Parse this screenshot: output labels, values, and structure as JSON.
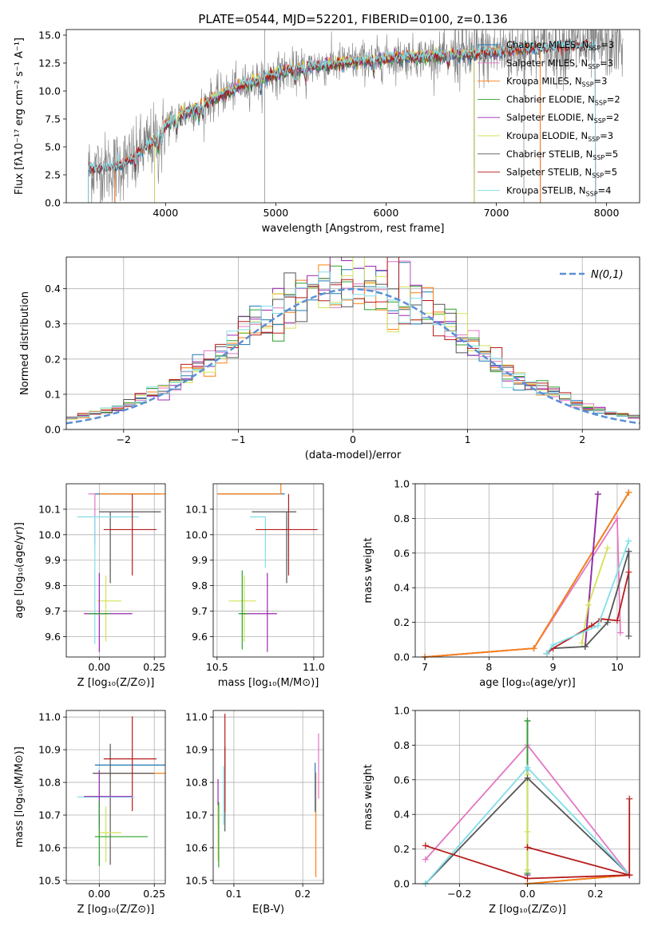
{
  "colors": {
    "Chabrier MILES": "#1f77b4",
    "Salpeter MILES": "#e377c2",
    "Kroupa MILES": "#ff7f0e",
    "Chabrier ELODIE": "#2ca02c",
    "Salpeter ELODIE": "#9c27b0",
    "Kroupa ELODIE": "#d4e157",
    "Chabrier STELIB": "#555555",
    "Salpeter STELIB": "#b71c1c",
    "Kroupa STELIB": "#80deea",
    "data": "#808080",
    "gaussian": "#5b8fd6"
  },
  "chart_data": [
    {
      "id": "spectrum",
      "type": "line",
      "title": "PLATE=0544, MJD=52201, FIBERID=0100, z=0.136",
      "xlabel": "wavelength [Angstrom, rest frame]",
      "ylabel": "Flux [fλ10⁻¹⁷ erg cm⁻² s⁻¹ A⁻¹]",
      "xlim": [
        3100,
        8300
      ],
      "ylim": [
        0,
        15.5
      ],
      "xticks": [
        4000,
        5000,
        6000,
        7000,
        8000
      ],
      "yticks": [
        0.0,
        2.5,
        5.0,
        7.5,
        10.0,
        12.5,
        15.0
      ],
      "legend_position": "upper-right",
      "legend": [
        {
          "model": "Chabrier MILES",
          "label": "Chabrier MILES, N",
          "sub": "SSP",
          "tail": "=3"
        },
        {
          "model": "Salpeter MILES",
          "label": "Salpeter MILES, N",
          "sub": "SSP",
          "tail": "=3"
        },
        {
          "model": "Kroupa MILES",
          "label": "Kroupa MILES, N",
          "sub": "SSP",
          "tail": "=3"
        },
        {
          "model": "Chabrier ELODIE",
          "label": "Chabrier ELODIE, N",
          "sub": "SSP",
          "tail": "=2"
        },
        {
          "model": "Salpeter ELODIE",
          "label": "Salpeter ELODIE, N",
          "sub": "SSP",
          "tail": "=2"
        },
        {
          "model": "Kroupa ELODIE",
          "label": "Kroupa ELODIE, N",
          "sub": "SSP",
          "tail": "=3"
        },
        {
          "model": "Chabrier STELIB",
          "label": "Chabrier STELIB, N",
          "sub": "SSP",
          "tail": "=5"
        },
        {
          "model": "Salpeter STELIB",
          "label": "Salpeter STELIB, N",
          "sub": "SSP",
          "tail": "=5"
        },
        {
          "model": "Kroupa STELIB",
          "label": "Kroupa STELIB, N",
          "sub": "SSP",
          "tail": "=4"
        }
      ],
      "continuum": {
        "x": [
          3300,
          3450,
          3600,
          3700,
          3800,
          3900,
          4000,
          4100,
          4300,
          4500,
          4700,
          4900,
          5100,
          5300,
          5500,
          5700,
          5900,
          6100,
          6300,
          6500,
          6700,
          6900,
          7100,
          7300,
          7500,
          7700,
          7900,
          8100
        ],
        "y": [
          3.0,
          3.1,
          3.4,
          4.0,
          4.8,
          5.6,
          6.9,
          7.6,
          8.6,
          9.6,
          10.5,
          11.2,
          11.8,
          12.2,
          12.4,
          12.6,
          12.8,
          13.0,
          13.1,
          13.2,
          13.3,
          13.4,
          13.6,
          13.8,
          13.9,
          14.0,
          14.1,
          14.2
        ]
      },
      "model_ranges": {
        "Chabrier MILES": [
          3540,
          7400
        ],
        "Salpeter MILES": [
          3540,
          7400
        ],
        "Kroupa MILES": [
          3540,
          7400
        ],
        "Chabrier ELODIE": [
          3900,
          6800
        ],
        "Salpeter ELODIE": [
          3900,
          6800
        ],
        "Kroupa ELODIE": [
          3900,
          6800
        ],
        "Chabrier STELIB": [
          3300,
          7900
        ],
        "Salpeter STELIB": [
          3300,
          7900
        ],
        "Kroupa STELIB": [
          3300,
          7900
        ]
      },
      "data_range": [
        3300,
        8150
      ]
    },
    {
      "id": "residuals",
      "type": "histogram",
      "xlabel": "(data-model)/error",
      "ylabel": "Normed distribution",
      "xlim": [
        -2.5,
        2.5
      ],
      "ylim": [
        0,
        0.49
      ],
      "xticks": [
        -2,
        -1,
        0,
        1,
        2
      ],
      "yticks": [
        0.0,
        0.1,
        0.2,
        0.3,
        0.4
      ],
      "bin_width": 0.1,
      "legend_label": "N(0,1)",
      "legend_position": "upper-right",
      "grid": true
    },
    {
      "id": "age-vs-Z",
      "type": "errorbar",
      "xlabel": "Z [log₁₀(Z/Z⊙)]",
      "ylabel": "age  [log₁₀(age/yr)]",
      "xlim": [
        -0.15,
        0.3
      ],
      "ylim": [
        9.52,
        10.2
      ],
      "xticks": [
        0.0,
        0.25
      ],
      "yticks": [
        9.6,
        9.7,
        9.8,
        9.9,
        10.0,
        10.1
      ],
      "points": [
        {
          "model": "Chabrier MILES",
          "x": 0.1,
          "y": 10.16,
          "xerr": [
            0.12,
            0.18
          ],
          "yerr": [
            0.0,
            0.0
          ]
        },
        {
          "model": "Kroupa MILES",
          "x": 0.1,
          "y": 10.16,
          "xerr": [
            0.1,
            0.2
          ],
          "yerr": [
            0.0,
            0.0
          ]
        },
        {
          "model": "Salpeter MILES",
          "x": -0.02,
          "y": 10.16,
          "xerr": [
            0.03,
            0.0
          ],
          "yerr": [
            0.2,
            0.0
          ]
        },
        {
          "model": "Chabrier STELIB",
          "x": 0.05,
          "y": 10.09,
          "xerr": [
            0.05,
            0.23
          ],
          "yerr": [
            0.28,
            0.0
          ]
        },
        {
          "model": "Kroupa STELIB",
          "x": -0.02,
          "y": 10.07,
          "xerr": [
            0.08,
            0.2
          ],
          "yerr": [
            0.5,
            0.0
          ]
        },
        {
          "model": "Salpeter STELIB",
          "x": 0.15,
          "y": 10.02,
          "xerr": [
            0.13,
            0.11
          ],
          "yerr": [
            0.18,
            0.14
          ]
        },
        {
          "model": "Kroupa ELODIE",
          "x": 0.03,
          "y": 9.74,
          "xerr": [
            0.04,
            0.07
          ],
          "yerr": [
            0.16,
            0.1
          ]
        },
        {
          "model": "Salpeter ELODIE",
          "x": 0.0,
          "y": 9.69,
          "xerr": [
            0.07,
            0.15
          ],
          "yerr": [
            0.15,
            0.16
          ]
        },
        {
          "model": "Chabrier ELODIE",
          "x": 0.0,
          "y": 9.69,
          "xerr": [
            0.05,
            0.05
          ],
          "yerr": [
            0.0,
            0.0
          ]
        }
      ]
    },
    {
      "id": "age-vs-mass",
      "type": "errorbar",
      "xlabel": "mass [log₁₀(M/M⊙)]",
      "ylabel": "",
      "xlim": [
        10.48,
        11.05
      ],
      "ylim": [
        9.52,
        10.2
      ],
      "xticks": [
        10.5,
        11.0
      ],
      "yticks": [
        9.6,
        9.7,
        9.8,
        9.9,
        10.0,
        10.1
      ],
      "points": [
        {
          "model": "Chabrier MILES",
          "x": 10.85,
          "y": 10.16,
          "xerr": [
            0.35,
            0.0
          ],
          "yerr": [
            0.0,
            0.0
          ]
        },
        {
          "model": "Kroupa MILES",
          "x": 10.83,
          "y": 10.16,
          "xerr": [
            0.33,
            0.0
          ],
          "yerr": [
            0.0,
            0.53
          ]
        },
        {
          "model": "Salpeter MILES",
          "x": 10.86,
          "y": 10.16,
          "xerr": [
            0.0,
            0.0
          ],
          "yerr": [
            0.0,
            0.0
          ]
        },
        {
          "model": "Chabrier STELIB",
          "x": 10.86,
          "y": 10.09,
          "xerr": [
            0.18,
            0.05
          ],
          "yerr": [
            0.28,
            0.0
          ]
        },
        {
          "model": "Kroupa STELIB",
          "x": 10.75,
          "y": 10.07,
          "xerr": [
            0.08,
            0.0
          ],
          "yerr": [
            0.2,
            0.0
          ]
        },
        {
          "model": "Salpeter STELIB",
          "x": 10.87,
          "y": 10.02,
          "xerr": [
            0.17,
            0.15
          ],
          "yerr": [
            0.18,
            0.14
          ]
        },
        {
          "model": "Kroupa ELODIE",
          "x": 10.64,
          "y": 9.74,
          "xerr": [
            0.08,
            0.06
          ],
          "yerr": [
            0.16,
            0.1
          ]
        },
        {
          "model": "Salpeter ELODIE",
          "x": 10.76,
          "y": 9.69,
          "xerr": [
            0.14,
            0.05
          ],
          "yerr": [
            0.15,
            0.16
          ]
        },
        {
          "model": "Chabrier ELODIE",
          "x": 10.63,
          "y": 9.69,
          "xerr": [
            0.02,
            0.03
          ],
          "yerr": [
            0.14,
            0.17
          ]
        }
      ]
    },
    {
      "id": "weight-vs-age",
      "type": "line",
      "xlabel": "age  [log₁₀(age/yr)]",
      "ylabel": "mass weight",
      "xlim": [
        6.85,
        10.35
      ],
      "ylim": [
        0,
        1.0
      ],
      "xticks": [
        7,
        8,
        9,
        10
      ],
      "yticks": [
        0.0,
        0.2,
        0.4,
        0.6,
        0.8,
        1.0
      ],
      "grid": true,
      "series": [
        {
          "model": "Chabrier MILES",
          "x": [
            7.0,
            8.7,
            10.18
          ],
          "y": [
            0.0,
            0.05,
            0.95
          ]
        },
        {
          "model": "Salpeter MILES",
          "x": [
            7.0,
            8.7,
            10.0,
            10.05
          ],
          "y": [
            0.0,
            0.05,
            0.8,
            0.14
          ]
        },
        {
          "model": "Kroupa MILES",
          "x": [
            7.0,
            8.7,
            10.18
          ],
          "y": [
            0.0,
            0.05,
            0.95
          ]
        },
        {
          "model": "Chabrier ELODIE",
          "x": [
            9.5,
            9.7
          ],
          "y": [
            0.06,
            0.94
          ]
        },
        {
          "model": "Salpeter ELODIE",
          "x": [
            9.5,
            9.7
          ],
          "y": [
            0.06,
            0.94
          ]
        },
        {
          "model": "Kroupa ELODIE",
          "x": [
            9.45,
            9.55,
            9.85
          ],
          "y": [
            0.08,
            0.3,
            0.63
          ]
        },
        {
          "model": "Chabrier STELIB",
          "x": [
            8.9,
            9.0,
            9.5,
            9.85,
            10.18,
            10.18
          ],
          "y": [
            0.02,
            0.05,
            0.06,
            0.2,
            0.61,
            0.12
          ]
        },
        {
          "model": "Salpeter STELIB",
          "x": [
            8.9,
            9.0,
            9.6,
            9.75,
            10.0,
            10.18
          ],
          "y": [
            0.02,
            0.05,
            0.18,
            0.22,
            0.21,
            0.49
          ]
        },
        {
          "model": "Kroupa STELIB",
          "x": [
            8.9,
            9.0,
            9.7,
            10.18
          ],
          "y": [
            0.02,
            0.07,
            0.18,
            0.67
          ]
        }
      ]
    },
    {
      "id": "mass-vs-Z",
      "type": "errorbar",
      "xlabel": "Z [log₁₀(Z/Z⊙)]",
      "ylabel": "mass [log₁₀(M/M⊙)]",
      "xlim": [
        -0.15,
        0.3
      ],
      "ylim": [
        10.49,
        11.02
      ],
      "xticks": [
        0.0,
        0.25
      ],
      "yticks": [
        10.5,
        10.6,
        10.7,
        10.8,
        10.9,
        11.0
      ],
      "points": [
        {
          "model": "Chabrier MILES",
          "x": 0.1,
          "y": 10.853,
          "xerr": [
            0.12,
            0.2
          ],
          "yerr": [
            0.0,
            0.0
          ]
        },
        {
          "model": "Kroupa MILES",
          "x": 0.1,
          "y": 10.828,
          "xerr": [
            0.12,
            0.2
          ],
          "yerr": [
            0.0,
            0.0
          ]
        },
        {
          "model": "Salpeter MILES",
          "x": 0.0,
          "y": 10.855,
          "xerr": [
            0.0,
            0.0
          ],
          "yerr": [
            0.0,
            0.0
          ]
        },
        {
          "model": "Chabrier STELIB",
          "x": 0.05,
          "y": 10.828,
          "xerr": [
            0.08,
            0.2
          ],
          "yerr": [
            0.28,
            0.09
          ]
        },
        {
          "model": "Salpeter STELIB",
          "x": 0.15,
          "y": 10.872,
          "xerr": [
            0.13,
            0.11
          ],
          "yerr": [
            0.16,
            0.13
          ]
        },
        {
          "model": "Kroupa STELIB",
          "x": 0.0,
          "y": 10.755,
          "xerr": [
            0.1,
            0.16
          ],
          "yerr": [
            0.09,
            0.09
          ]
        },
        {
          "model": "Salpeter ELODIE",
          "x": 0.0,
          "y": 10.757,
          "xerr": [
            0.07,
            0.15
          ],
          "yerr": [
            0.1,
            0.08
          ]
        },
        {
          "model": "Kroupa ELODIE",
          "x": 0.03,
          "y": 10.646,
          "xerr": [
            0.03,
            0.07
          ],
          "yerr": [
            0.09,
            0.08
          ]
        },
        {
          "model": "Chabrier ELODIE",
          "x": 0.0,
          "y": 10.634,
          "xerr": [
            0.02,
            0.22
          ],
          "yerr": [
            0.09,
            0.11
          ]
        }
      ]
    },
    {
      "id": "mass-vs-EBV",
      "type": "errorbar",
      "xlabel": "E(B-V)",
      "ylabel": "",
      "xlim": [
        0.07,
        0.23
      ],
      "ylim": [
        10.49,
        11.02
      ],
      "xticks": [
        0.1,
        0.2
      ],
      "yticks": [
        10.5,
        10.6,
        10.7,
        10.8,
        10.9,
        11.0
      ],
      "points": [
        {
          "model": "Chabrier STELIB",
          "x": 0.087,
          "y": 10.78,
          "xerr": [
            0.0,
            0.0
          ],
          "yerr": [
            0.13,
            0.13
          ]
        },
        {
          "model": "Salpeter STELIB",
          "x": 0.087,
          "y": 10.87,
          "xerr": [
            0.0,
            0.0
          ],
          "yerr": [
            0.16,
            0.14
          ]
        },
        {
          "model": "Kroupa STELIB",
          "x": 0.085,
          "y": 10.76,
          "xerr": [
            0.0,
            0.0
          ],
          "yerr": [
            0.09,
            0.09
          ]
        },
        {
          "model": "Salpeter ELODIE",
          "x": 0.077,
          "y": 10.75,
          "xerr": [
            0.0,
            0.0
          ],
          "yerr": [
            0.08,
            0.06
          ]
        },
        {
          "model": "Kroupa ELODIE",
          "x": 0.077,
          "y": 10.65,
          "xerr": [
            0.0,
            0.0
          ],
          "yerr": [
            0.09,
            0.08
          ]
        },
        {
          "model": "Chabrier ELODIE",
          "x": 0.078,
          "y": 10.63,
          "xerr": [
            0.0,
            0.0
          ],
          "yerr": [
            0.09,
            0.11
          ]
        },
        {
          "model": "Kroupa MILES",
          "x": 0.219,
          "y": 10.68,
          "xerr": [
            0.0,
            0.0
          ],
          "yerr": [
            0.17,
            0.15
          ]
        },
        {
          "model": "Chabrier MILES",
          "x": 0.218,
          "y": 10.79,
          "xerr": [
            0.0,
            0.0
          ],
          "yerr": [
            0.08,
            0.07
          ]
        },
        {
          "model": "Salpeter MILES",
          "x": 0.223,
          "y": 10.85,
          "xerr": [
            0.0,
            0.0
          ],
          "yerr": [
            0.1,
            0.1
          ]
        }
      ]
    },
    {
      "id": "weight-vs-Z",
      "type": "line",
      "xlabel": "Z [log₁₀(Z/Z⊙)]",
      "ylabel": "mass weight",
      "xlim": [
        -0.33,
        0.33
      ],
      "ylim": [
        0,
        1.0
      ],
      "xticks": [
        -0.2,
        0.0,
        0.2
      ],
      "yticks": [
        0.0,
        0.2,
        0.4,
        0.6,
        0.8,
        1.0
      ],
      "grid": true,
      "series": [
        {
          "model": "Chabrier MILES",
          "x": [
            0.0,
            0.3
          ],
          "y": [
            0.0,
            0.05
          ]
        },
        {
          "model": "Kroupa MILES",
          "x": [
            0.0,
            0.3
          ],
          "y": [
            0.0,
            0.05
          ]
        },
        {
          "model": "Salpeter MILES",
          "x": [
            -0.3,
            0.0,
            0.3
          ],
          "y": [
            0.14,
            0.8,
            0.05
          ]
        },
        {
          "model": "Salpeter ELODIE",
          "x": [
            0.0,
            0.0
          ],
          "y": [
            0.05,
            0.94
          ]
        },
        {
          "model": "Chabrier ELODIE",
          "x": [
            0.0,
            0.0
          ],
          "y": [
            0.06,
            0.94
          ]
        },
        {
          "model": "Kroupa ELODIE",
          "x": [
            0.0,
            0.0,
            0.0
          ],
          "y": [
            0.3,
            0.63,
            0.08
          ]
        },
        {
          "model": "Chabrier STELIB",
          "x": [
            -0.3,
            0.0,
            0.3
          ],
          "y": [
            0.0,
            0.61,
            0.05
          ]
        },
        {
          "model": "Kroupa STELIB",
          "x": [
            -0.3,
            0.0,
            0.3
          ],
          "y": [
            0.0,
            0.67,
            0.05
          ]
        },
        {
          "model": "Salpeter STELIB",
          "x": [
            -0.3,
            0.0,
            0.3,
            0.0,
            0.0,
            0.3,
            0.3
          ],
          "y": [
            0.22,
            0.03,
            0.05,
            0.21,
            0.21,
            0.05,
            0.49
          ]
        }
      ]
    }
  ]
}
